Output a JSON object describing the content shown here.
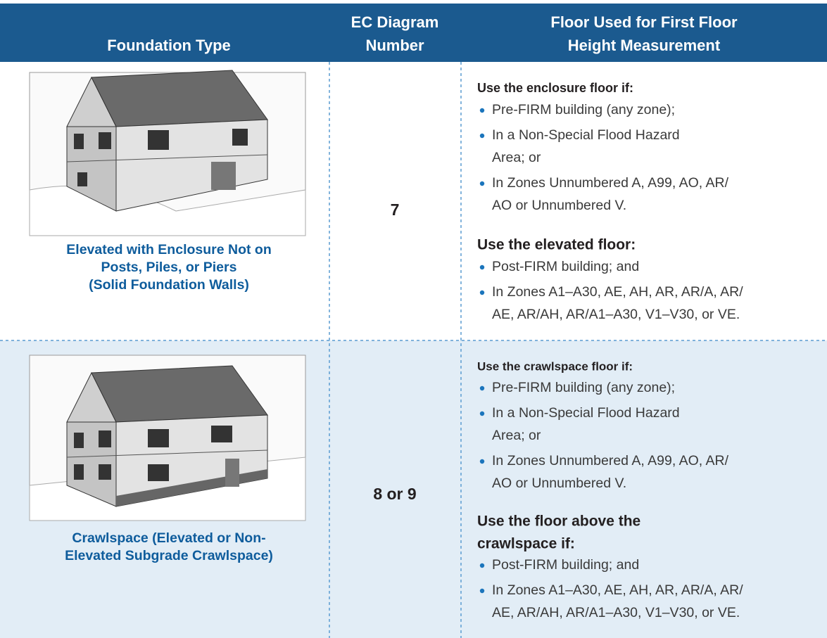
{
  "header": {
    "columns": [
      [
        "Foundation Type"
      ],
      [
        "EC Diagram",
        "Number"
      ],
      [
        "Floor Used for First Floor",
        "Height Measurement"
      ]
    ]
  },
  "rows": [
    {
      "foundation_type": [
        "Elevated with Enclosure Not on",
        "Posts, Piles, or Piers",
        "(Solid Foundation Walls)"
      ],
      "ec_diagram_number": "7",
      "sections": [
        {
          "heading": [
            "Use the enclosure floor if:"
          ],
          "bullets": [
            [
              "Pre-FIRM building (any zone);"
            ],
            [
              "In a Non-Special Flood Hazard",
              "Area; or"
            ],
            [
              "In Zones Unnumbered A, A99, AO, AR/",
              "AO or Unnumbered V."
            ]
          ]
        },
        {
          "heading": [
            "Use the elevated floor:"
          ],
          "bullets": [
            [
              "Post-FIRM building; and"
            ],
            [
              "In Zones A1–A30, AE, AH, AR, AR/A, AR/",
              "AE, AR/AH, AR/A1–A30, V1–V30, or VE."
            ]
          ]
        }
      ]
    },
    {
      "foundation_type": [
        "Crawlspace (Elevated or Non-",
        "Elevated Subgrade Crawlspace)"
      ],
      "ec_diagram_number": "8 or 9",
      "sections": [
        {
          "heading": [
            "Use the crawlspace floor if:"
          ],
          "bullets": [
            [
              "Pre-FIRM building (any zone);"
            ],
            [
              "In a Non-Special Flood Hazard",
              "Area; or"
            ],
            [
              "In Zones Unnumbered A, A99, AO, AR/",
              "AO or Unnumbered V."
            ]
          ]
        },
        {
          "heading": [
            "Use the floor above the",
            "crawlspace if:"
          ],
          "bullets": [
            [
              "Post-FIRM building; and"
            ],
            [
              "In Zones A1–A30, AE, AH, AR, AR/A, AR/",
              "AE, AR/AH, AR/A1–A30, V1–V30, or VE."
            ]
          ]
        }
      ]
    }
  ]
}
